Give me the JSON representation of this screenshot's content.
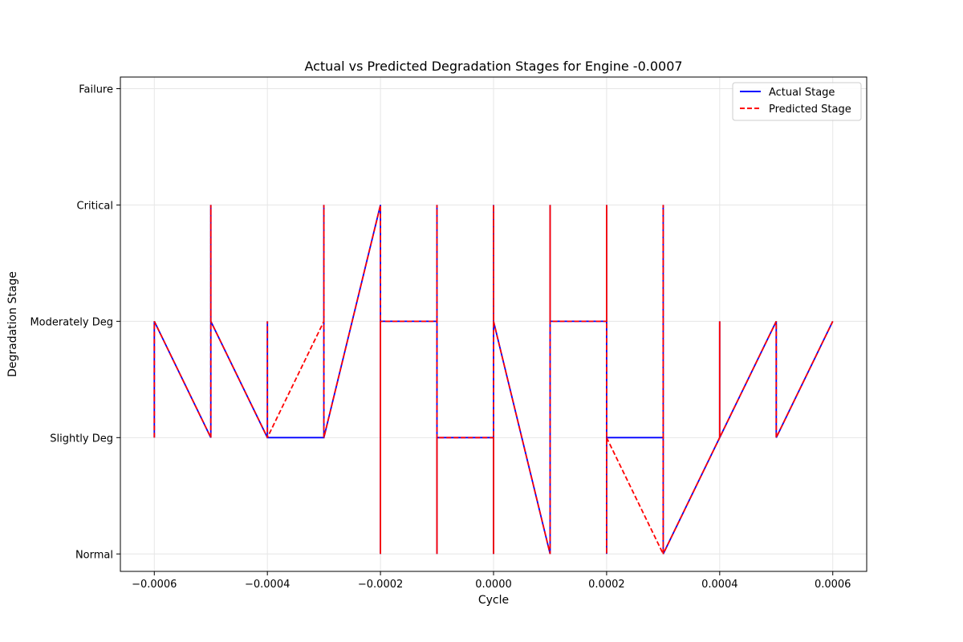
{
  "chart_data": {
    "type": "line",
    "title": "Actual vs Predicted Degradation Stages for Engine -0.0007",
    "xlabel": "Cycle",
    "ylabel": "Degradation Stage",
    "xlim": [
      -0.00066,
      0.00066
    ],
    "ylim": [
      -0.15,
      4.1
    ],
    "x_ticks": [
      -0.0006,
      -0.0004,
      -0.0002,
      0.0,
      0.0002,
      0.0004,
      0.0006
    ],
    "x_tick_labels": [
      "−0.0006",
      "−0.0004",
      "−0.0002",
      "0.0000",
      "0.0002",
      "0.0004",
      "0.0006"
    ],
    "y_ticks": [
      0,
      1,
      2,
      3,
      4
    ],
    "y_tick_labels": [
      "Normal",
      "Slightly Deg",
      "Moderately Deg",
      "Critical",
      "Failure"
    ],
    "grid": true,
    "legend_position": "upper right",
    "series": [
      {
        "name": "Actual Stage",
        "color": "#0000ff",
        "style": "solid",
        "points": [
          [
            -0.0006,
            1
          ],
          [
            -0.0006,
            2
          ],
          [
            -0.0005,
            1
          ],
          [
            -0.0005,
            3
          ],
          [
            -0.0005,
            2
          ],
          [
            -0.0004,
            1
          ],
          [
            -0.0004,
            2
          ],
          [
            -0.0004,
            1
          ],
          [
            -0.0003,
            1
          ],
          [
            -0.0003,
            3
          ],
          [
            -0.0003,
            1
          ],
          [
            -0.0002,
            3
          ],
          [
            -0.0002,
            0
          ],
          [
            -0.0002,
            2
          ],
          [
            -0.0001,
            2
          ],
          [
            -0.0001,
            3
          ],
          [
            -0.0001,
            0
          ],
          [
            -0.0001,
            1
          ],
          [
            0.0,
            1
          ],
          [
            0.0,
            0
          ],
          [
            0.0,
            3
          ],
          [
            0.0,
            2
          ],
          [
            0.0001,
            0
          ],
          [
            0.0001,
            3
          ],
          [
            0.0001,
            2
          ],
          [
            0.0002,
            2
          ],
          [
            0.0002,
            3
          ],
          [
            0.0002,
            0
          ],
          [
            0.0002,
            1
          ],
          [
            0.0003,
            1
          ],
          [
            0.0003,
            3
          ],
          [
            0.0003,
            0
          ],
          [
            0.0004,
            1
          ],
          [
            0.0004,
            2
          ],
          [
            0.0004,
            1
          ],
          [
            0.0005,
            2
          ],
          [
            0.0005,
            1
          ],
          [
            0.0006,
            2
          ]
        ]
      },
      {
        "name": "Predicted Stage",
        "color": "#ff0000",
        "style": "dashed",
        "points": [
          [
            -0.0006,
            1
          ],
          [
            -0.0006,
            2
          ],
          [
            -0.0005,
            1
          ],
          [
            -0.0005,
            3
          ],
          [
            -0.0005,
            2
          ],
          [
            -0.0004,
            1
          ],
          [
            -0.0004,
            2
          ],
          [
            -0.0004,
            1
          ],
          [
            -0.0003,
            2
          ],
          [
            -0.0003,
            3
          ],
          [
            -0.0003,
            1
          ],
          [
            -0.0002,
            3
          ],
          [
            -0.0002,
            0
          ],
          [
            -0.0002,
            2
          ],
          [
            -0.0001,
            2
          ],
          [
            -0.0001,
            3
          ],
          [
            -0.0001,
            0
          ],
          [
            -0.0001,
            1
          ],
          [
            0.0,
            1
          ],
          [
            0.0,
            0
          ],
          [
            0.0,
            3
          ],
          [
            0.0,
            2
          ],
          [
            0.0001,
            0
          ],
          [
            0.0001,
            3
          ],
          [
            0.0001,
            2
          ],
          [
            0.0002,
            2
          ],
          [
            0.0002,
            3
          ],
          [
            0.0002,
            0
          ],
          [
            0.0002,
            1
          ],
          [
            0.0003,
            0
          ],
          [
            0.0003,
            3
          ],
          [
            0.0003,
            0
          ],
          [
            0.0004,
            1
          ],
          [
            0.0004,
            2
          ],
          [
            0.0004,
            1
          ],
          [
            0.0005,
            2
          ],
          [
            0.0005,
            1
          ],
          [
            0.0006,
            2
          ]
        ]
      }
    ]
  }
}
